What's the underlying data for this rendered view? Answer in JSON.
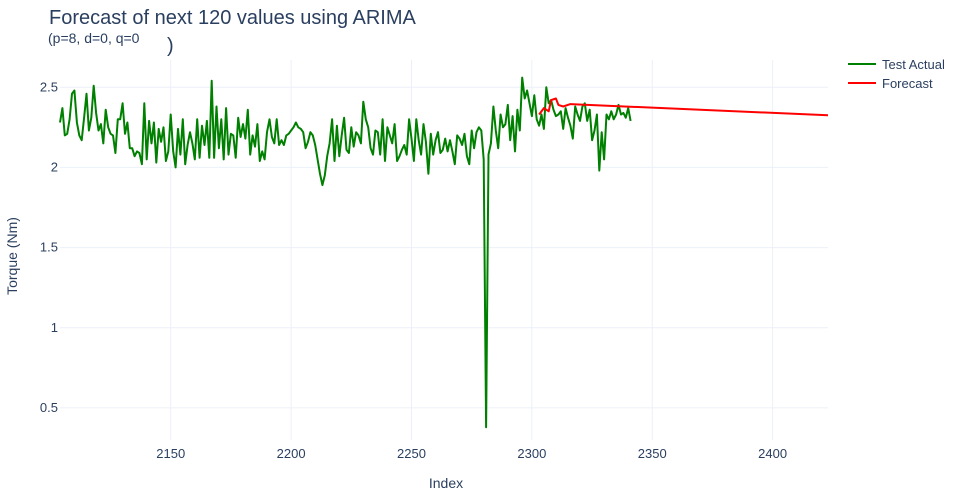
{
  "chart_data": {
    "type": "line",
    "title": "Forecast of next 120 values using ARIMA",
    "subtitle": "(p=8, d=0, q=0",
    "subtitle_tail": ")",
    "xlabel": "Index",
    "ylabel": "Torque (Nm)",
    "xlim": [
      2104,
      2423
    ],
    "ylim": [
      0.3,
      2.67
    ],
    "x_ticks": [
      2150,
      2200,
      2250,
      2300,
      2350,
      2400
    ],
    "x_tick_labels": [
      "2150",
      "2200",
      "2250",
      "2300",
      "2350",
      "2400"
    ],
    "y_ticks": [
      0.5,
      1,
      1.5,
      2,
      2.5
    ],
    "y_tick_labels": [
      "0.5",
      "1",
      "1.5",
      "2",
      "2.5"
    ],
    "grid": true,
    "legend_position": "top-right",
    "series": [
      {
        "name": "Test Actual",
        "color": "#008000",
        "x_start": 2104,
        "values": [
          2.28,
          2.37,
          2.2,
          2.21,
          2.3,
          2.46,
          2.48,
          2.28,
          2.2,
          2.17,
          2.31,
          2.46,
          2.23,
          2.31,
          2.51,
          2.34,
          2.23,
          2.27,
          2.15,
          2.36,
          2.25,
          2.21,
          2.2,
          2.09,
          2.3,
          2.3,
          2.4,
          2.21,
          2.28,
          2.12,
          2.12,
          2.07,
          2.1,
          2.09,
          2.02,
          2.4,
          2.05,
          2.29,
          2.15,
          2.28,
          2.03,
          2.24,
          2.16,
          2.25,
          2.04,
          2.1,
          2.33,
          2.1,
          2.0,
          2.24,
          2.08,
          2.3,
          2.02,
          2.14,
          2.22,
          2.15,
          2.05,
          2.3,
          2.06,
          2.26,
          2.14,
          2.29,
          2.06,
          2.54,
          2.06,
          2.38,
          2.12,
          2.3,
          2.05,
          2.37,
          2.08,
          2.21,
          2.2,
          2.06,
          2.31,
          2.19,
          2.27,
          2.18,
          2.36,
          2.08,
          2.2,
          2.13,
          2.27,
          2.04,
          2.1,
          2.05,
          2.22,
          2.3,
          2.19,
          2.15,
          2.3,
          2.14,
          2.17,
          2.14,
          2.2,
          2.21,
          2.23,
          2.25,
          2.28,
          2.25,
          2.24,
          2.22,
          2.12,
          2.16,
          2.22,
          2.2,
          2.14,
          2.05,
          1.96,
          1.89,
          1.95,
          2.07,
          2.15,
          2.3,
          2.04,
          2.26,
          2.07,
          2.2,
          2.31,
          2.11,
          2.09,
          2.25,
          2.13,
          2.22,
          2.2,
          2.15,
          2.41,
          2.3,
          2.25,
          2.12,
          2.08,
          2.23,
          2.22,
          2.08,
          2.3,
          2.04,
          2.25,
          2.2,
          2.15,
          2.27,
          2.04,
          2.07,
          2.11,
          2.14,
          2.08,
          2.3,
          2.18,
          2.04,
          2.3,
          2.17,
          2.08,
          2.27,
          2.16,
          1.96,
          2.21,
          2.08,
          2.17,
          2.22,
          2.09,
          2.11,
          2.18,
          2.1,
          2.17,
          2.1,
          2.02,
          2.2,
          2.18,
          2.14,
          2.21,
          2.07,
          2.02,
          2.23,
          2.12,
          2.22,
          2.25,
          2.23,
          2.05,
          0.38,
          2.08,
          2.15,
          2.38,
          2.23,
          2.12,
          2.33,
          2.25,
          2.27,
          2.39,
          2.17,
          2.32,
          2.1,
          2.36,
          2.23,
          2.56,
          2.43,
          2.48,
          2.4,
          2.32,
          2.45,
          2.3,
          2.26,
          2.33,
          2.24,
          2.5,
          2.4,
          2.42,
          2.36,
          2.32,
          2.33,
          2.35,
          2.24,
          2.37,
          2.31,
          2.26,
          2.18,
          2.38,
          2.33,
          2.29,
          2.38,
          2.4,
          2.29,
          2.36,
          2.17,
          2.23,
          2.33,
          1.98,
          2.22,
          2.05,
          2.33,
          2.3,
          2.35,
          2.3,
          2.33,
          2.39,
          2.33,
          2.34,
          2.31,
          2.37,
          2.29
        ]
      },
      {
        "name": "Forecast",
        "color": "#ff0000",
        "x": [
          2303,
          2305,
          2307,
          2308,
          2310,
          2311,
          2313,
          2316,
          2423
        ],
        "y": [
          2.33,
          2.37,
          2.35,
          2.42,
          2.43,
          2.39,
          2.38,
          2.395,
          2.325
        ]
      }
    ]
  }
}
